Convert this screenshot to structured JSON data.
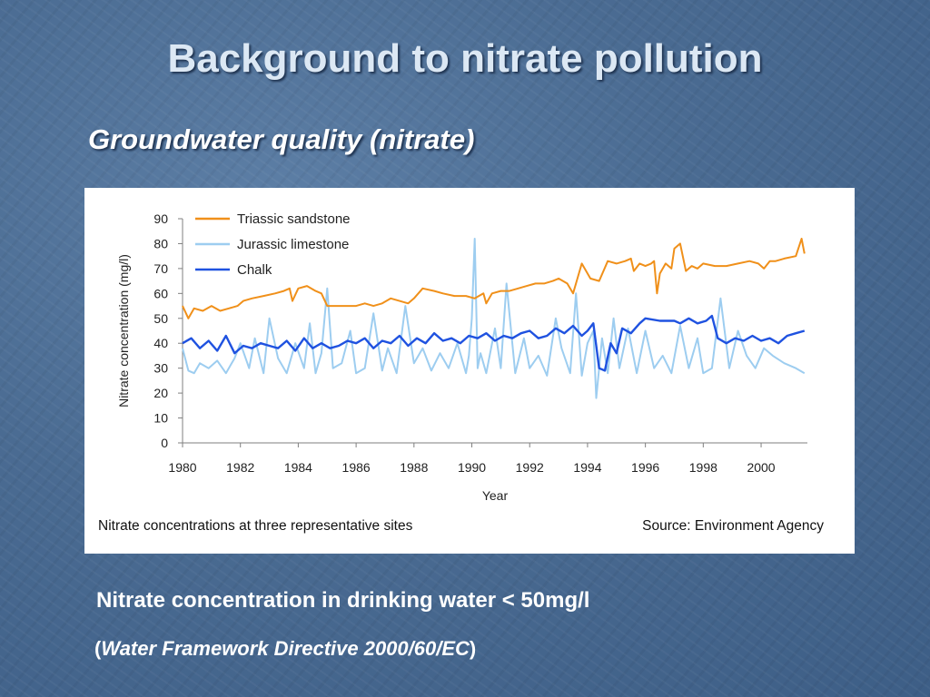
{
  "slide": {
    "title": "Background to nitrate pollution",
    "subtitle": "Groundwater quality (nitrate)",
    "statement": "Nitrate concentration in drinking water < 50mg/l",
    "directive_open": "(",
    "directive_text": "Water Framework Directive 2000/60/EC",
    "directive_close": ")"
  },
  "chart_data": {
    "type": "line",
    "title": "",
    "xlabel": "Year",
    "ylabel": "Nitrate concentration (mg/l)",
    "xlim": [
      1980,
      2001.6
    ],
    "ylim": [
      0,
      90
    ],
    "x_ticks": [
      "1980",
      "1982",
      "1984",
      "1986",
      "1988",
      "1990",
      "1992",
      "1994",
      "1996",
      "1998",
      "2000"
    ],
    "y_ticks": [
      "0",
      "10",
      "20",
      "30",
      "40",
      "50",
      "60",
      "70",
      "80",
      "90"
    ],
    "grid": false,
    "legend": "top-left",
    "caption": "Nitrate concentrations at three representative sites",
    "source": "Source:  Environment Agency",
    "colors": {
      "Triassic sandstone": "#f0901a",
      "Jurassic limestone": "#9dcdf0",
      "Chalk": "#1f52e0"
    },
    "series": [
      {
        "name": "Triassic sandstone",
        "x": [
          1980.0,
          1980.2,
          1980.4,
          1980.7,
          1981.0,
          1981.3,
          1981.6,
          1981.9,
          1982.1,
          1982.4,
          1982.8,
          1983.2,
          1983.5,
          1983.7,
          1983.8,
          1984.0,
          1984.3,
          1984.6,
          1984.8,
          1985.0,
          1985.3,
          1985.6,
          1986.0,
          1986.3,
          1986.6,
          1986.9,
          1987.2,
          1987.5,
          1987.8,
          1988.0,
          1988.3,
          1988.7,
          1989.0,
          1989.4,
          1989.8,
          1990.1,
          1990.4,
          1990.5,
          1990.7,
          1991.0,
          1991.3,
          1991.6,
          1991.9,
          1992.2,
          1992.5,
          1992.8,
          1993.0,
          1993.3,
          1993.5,
          1993.8,
          1994.1,
          1994.4,
          1994.7,
          1995.0,
          1995.3,
          1995.5,
          1995.6,
          1995.8,
          1996.0,
          1996.2,
          1996.3,
          1996.4,
          1996.5,
          1996.7,
          1996.9,
          1997.0,
          1997.2,
          1997.4,
          1997.6,
          1997.8,
          1998.0,
          1998.4,
          1998.8,
          1999.2,
          1999.6,
          1999.9,
          2000.1,
          2000.3,
          2000.5,
          2000.8,
          2001.2,
          2001.4,
          2001.5
        ],
        "y": [
          55,
          50,
          54,
          53,
          55,
          53,
          54,
          55,
          57,
          58,
          59,
          60,
          61,
          62,
          57,
          62,
          63,
          61,
          60,
          55,
          55,
          55,
          55,
          56,
          55,
          56,
          58,
          57,
          56,
          58,
          62,
          61,
          60,
          59,
          59,
          58,
          60,
          56,
          60,
          61,
          61,
          62,
          63,
          64,
          64,
          65,
          66,
          64,
          60,
          72,
          66,
          65,
          73,
          72,
          73,
          74,
          69,
          72,
          71,
          72,
          73,
          60,
          68,
          72,
          70,
          78,
          80,
          69,
          71,
          70,
          72,
          71,
          71,
          72,
          73,
          72,
          70,
          73,
          73,
          74,
          75,
          82,
          76
        ],
        "label": "Triassic sandstone"
      },
      {
        "name": "Jurassic limestone",
        "x": [
          1980.0,
          1980.2,
          1980.4,
          1980.6,
          1980.9,
          1981.2,
          1981.5,
          1981.8,
          1982.0,
          1982.3,
          1982.5,
          1982.8,
          1983.0,
          1983.3,
          1983.6,
          1983.9,
          1984.2,
          1984.4,
          1984.6,
          1984.8,
          1985.0,
          1985.2,
          1985.5,
          1985.8,
          1986.0,
          1986.3,
          1986.6,
          1986.9,
          1987.1,
          1987.4,
          1987.7,
          1988.0,
          1988.3,
          1988.6,
          1988.9,
          1989.2,
          1989.5,
          1989.8,
          1989.9,
          1990.0,
          1990.1,
          1990.2,
          1990.3,
          1990.5,
          1990.8,
          1991.0,
          1991.2,
          1991.5,
          1991.8,
          1992.0,
          1992.3,
          1992.6,
          1992.9,
          1993.1,
          1993.4,
          1993.6,
          1993.8,
          1994.0,
          1994.2,
          1994.3,
          1994.5,
          1994.7,
          1994.9,
          1995.1,
          1995.4,
          1995.7,
          1996.0,
          1996.3,
          1996.6,
          1996.9,
          1997.2,
          1997.5,
          1997.8,
          1998.0,
          1998.3,
          1998.6,
          1998.9,
          1999.2,
          1999.5,
          1999.8,
          2000.1,
          2000.4,
          2000.8,
          2001.2,
          2001.5
        ],
        "y": [
          38,
          29,
          28,
          32,
          30,
          33,
          28,
          34,
          40,
          30,
          42,
          28,
          50,
          34,
          28,
          40,
          30,
          48,
          28,
          36,
          62,
          30,
          32,
          45,
          28,
          30,
          52,
          29,
          38,
          28,
          55,
          32,
          38,
          29,
          36,
          30,
          40,
          28,
          35,
          50,
          82,
          30,
          36,
          28,
          46,
          30,
          64,
          28,
          42,
          30,
          35,
          27,
          50,
          38,
          28,
          60,
          27,
          40,
          45,
          18,
          42,
          28,
          50,
          30,
          46,
          28,
          45,
          30,
          35,
          28,
          47,
          30,
          42,
          28,
          30,
          58,
          30,
          45,
          35,
          30,
          38,
          35,
          32,
          30,
          28
        ],
        "label": "Jurassic limestone"
      },
      {
        "name": "Chalk",
        "x": [
          1980.0,
          1980.3,
          1980.6,
          1980.9,
          1981.2,
          1981.5,
          1981.8,
          1982.1,
          1982.4,
          1982.7,
          1983.0,
          1983.3,
          1983.6,
          1983.9,
          1984.2,
          1984.5,
          1984.8,
          1985.1,
          1985.4,
          1985.7,
          1986.0,
          1986.3,
          1986.6,
          1986.9,
          1987.2,
          1987.5,
          1987.8,
          1988.1,
          1988.4,
          1988.7,
          1989.0,
          1989.3,
          1989.6,
          1989.9,
          1990.2,
          1990.5,
          1990.8,
          1991.1,
          1991.4,
          1991.7,
          1992.0,
          1992.3,
          1992.6,
          1992.9,
          1993.2,
          1993.5,
          1993.8,
          1994.0,
          1994.2,
          1994.4,
          1994.6,
          1994.8,
          1995.0,
          1995.2,
          1995.5,
          1995.8,
          1996.0,
          1996.5,
          1997.0,
          1997.2,
          1997.5,
          1997.8,
          1998.1,
          1998.3,
          1998.5,
          1998.8,
          1999.1,
          1999.4,
          1999.7,
          2000.0,
          2000.3,
          2000.6,
          2000.9,
          2001.2,
          2001.5
        ],
        "y": [
          40,
          42,
          38,
          41,
          37,
          43,
          36,
          39,
          38,
          40,
          39,
          38,
          41,
          37,
          42,
          38,
          40,
          38,
          39,
          41,
          40,
          42,
          38,
          41,
          40,
          43,
          39,
          42,
          40,
          44,
          41,
          42,
          40,
          43,
          42,
          44,
          41,
          43,
          42,
          44,
          45,
          42,
          43,
          46,
          44,
          47,
          43,
          45,
          48,
          30,
          29,
          40,
          36,
          46,
          44,
          48,
          50,
          49,
          49,
          48,
          50,
          48,
          49,
          51,
          42,
          40,
          42,
          41,
          43,
          41,
          42,
          40,
          43,
          44,
          45
        ],
        "label": "Chalk"
      }
    ]
  }
}
